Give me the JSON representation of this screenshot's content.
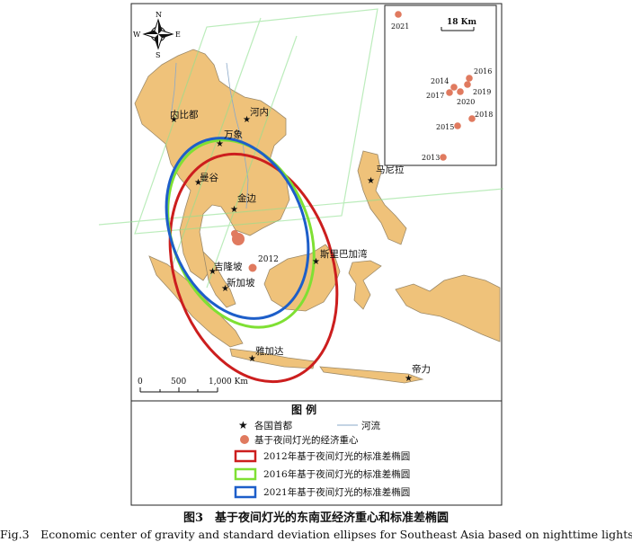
{
  "map": {
    "compass": {
      "n": "N",
      "s": "S",
      "e": "E",
      "w": "W"
    },
    "cities": [
      {
        "id": "naypyidaw",
        "name": "内比都"
      },
      {
        "id": "hanoi",
        "name": "河内"
      },
      {
        "id": "vientiane",
        "name": "万象"
      },
      {
        "id": "bangkok",
        "name": "曼谷"
      },
      {
        "id": "phnompenh",
        "name": "金边"
      },
      {
        "id": "kualalumpur",
        "name": "吉隆坡"
      },
      {
        "id": "singapore",
        "name": "新加坡"
      },
      {
        "id": "bsb",
        "name": "斯里巴加湾"
      },
      {
        "id": "manila",
        "name": "马尼拉"
      },
      {
        "id": "jakarta",
        "name": "雅加达"
      },
      {
        "id": "dili",
        "name": "帝力"
      }
    ],
    "main_center_label": "2012",
    "scalebar": {
      "ticks": [
        "0",
        "500",
        "1,000 Km"
      ]
    }
  },
  "inset": {
    "top_label": "2021",
    "scale_label": "18 Km",
    "points": [
      {
        "year": "2021"
      },
      {
        "year": "2016"
      },
      {
        "year": "2014"
      },
      {
        "year": "2019"
      },
      {
        "year": "2017"
      },
      {
        "year": "2020"
      },
      {
        "year": "2018"
      },
      {
        "year": "2015"
      },
      {
        "year": "2013"
      }
    ]
  },
  "legend": {
    "title": "图 例",
    "capital": "各国首都",
    "river": "河流",
    "center": "基于夜间灯光的经济重心",
    "ellipses": [
      {
        "label": "2012年基于夜间灯光的标准差椭圆",
        "color": "#cc1e1e"
      },
      {
        "label": "2016年基于夜间灯光的标准差椭圆",
        "color": "#7fe033"
      },
      {
        "label": "2021年基于夜间灯光的标准差椭圆",
        "color": "#1d5ec9"
      }
    ]
  },
  "colors": {
    "land": "#efc27a",
    "land_edge": "#9c8a6a",
    "center_dot": "#e07a5f",
    "watermark": "#8fe08f"
  },
  "caption": {
    "cn": "图3　基于夜间灯光的东南亚经济重心和标准差椭圆",
    "en": "Fig.3　Economic center of gravity and standard deviation ellipses for Southeast Asia based on nighttime lights"
  }
}
